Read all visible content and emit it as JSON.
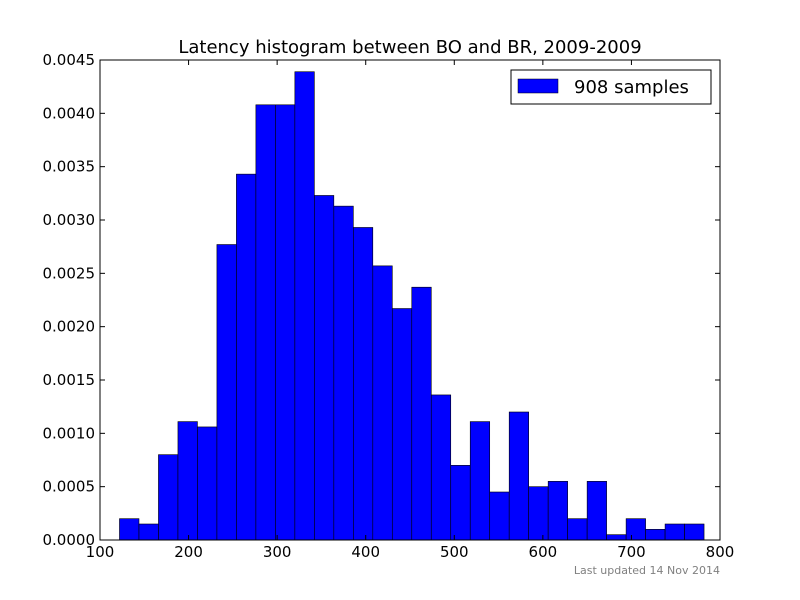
{
  "chart_data": {
    "type": "bar",
    "title": "Latency histogram between BO and BR, 2009-2009",
    "xlabel": "",
    "ylabel": "",
    "xlim": [
      100,
      800
    ],
    "ylim": [
      0,
      0.0045
    ],
    "x_ticks": [
      100,
      200,
      300,
      400,
      500,
      600,
      700,
      800
    ],
    "x_tick_labels": [
      "100",
      "200",
      "300",
      "400",
      "500",
      "600",
      "700",
      "800"
    ],
    "y_ticks": [
      0,
      0.0005,
      0.001,
      0.0015,
      0.002,
      0.0025,
      0.003,
      0.0035,
      0.004,
      0.0045
    ],
    "y_tick_labels": [
      "0.0000",
      "0.0005",
      "0.0010",
      "0.0015",
      "0.0020",
      "0.0025",
      "0.0030",
      "0.0035",
      "0.0040",
      "0.0045"
    ],
    "bin_start": 122,
    "bin_width": 22,
    "bin_values": [
      0.0002,
      0.00015,
      0.0008,
      0.00111,
      0.00106,
      0.00277,
      0.00343,
      0.00408,
      0.00408,
      0.00439,
      0.00323,
      0.00313,
      0.00293,
      0.00257,
      0.00217,
      0.00237,
      0.00136,
      0.0007,
      0.00111,
      0.00045,
      0.0012,
      0.0005,
      0.00055,
      0.0002,
      0.00055,
      5e-05,
      0.0002,
      0.0001,
      0.00015,
      0.00015
    ],
    "series": [
      {
        "name": "908 samples",
        "color": "#0000ff"
      }
    ],
    "legend_position": "top-right",
    "grid": false
  },
  "footer": {
    "updated_text": "Last updated 14 Nov 2014"
  }
}
